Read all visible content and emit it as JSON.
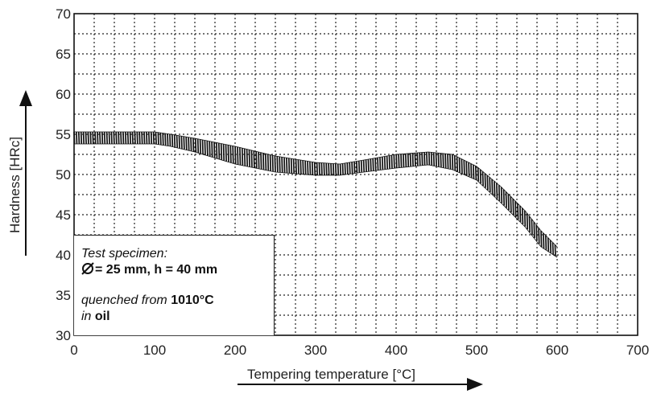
{
  "chart_data": {
    "type": "area",
    "xlabel": "Tempering temperature [°C]",
    "ylabel": "Hardness [HRc]",
    "xlim": [
      0,
      700
    ],
    "ylim": [
      30,
      70
    ],
    "xticks": [
      "0",
      "100",
      "200",
      "300",
      "400",
      "500",
      "600",
      "700"
    ],
    "yticks": [
      "30",
      "35",
      "40",
      "45",
      "50",
      "55",
      "60",
      "65",
      "70"
    ],
    "grid": true,
    "series": [
      {
        "x": [
          0,
          50,
          100,
          120,
          150,
          200,
          250,
          300,
          330,
          360,
          400,
          440,
          470,
          500,
          530,
          560,
          580,
          600
        ],
        "upper": [
          55.3,
          55.3,
          55.3,
          55.0,
          54.5,
          53.5,
          52.3,
          51.5,
          51.3,
          51.8,
          52.5,
          52.8,
          52.5,
          51.0,
          48.5,
          45.5,
          43.0,
          41.0
        ],
        "lower": [
          53.8,
          53.8,
          53.8,
          53.5,
          52.8,
          51.3,
          50.3,
          49.9,
          49.9,
          50.3,
          50.8,
          51.2,
          50.6,
          49.3,
          46.5,
          43.5,
          41.0,
          39.7
        ]
      }
    ],
    "annotation": {
      "line1": "Test specimen:",
      "line2_value": "= 25 mm, h = 40 mm",
      "line3_prefix": "quenched from ",
      "line3_value": "1010°C",
      "line4_prefix": "in ",
      "line4_value": "oil"
    }
  }
}
